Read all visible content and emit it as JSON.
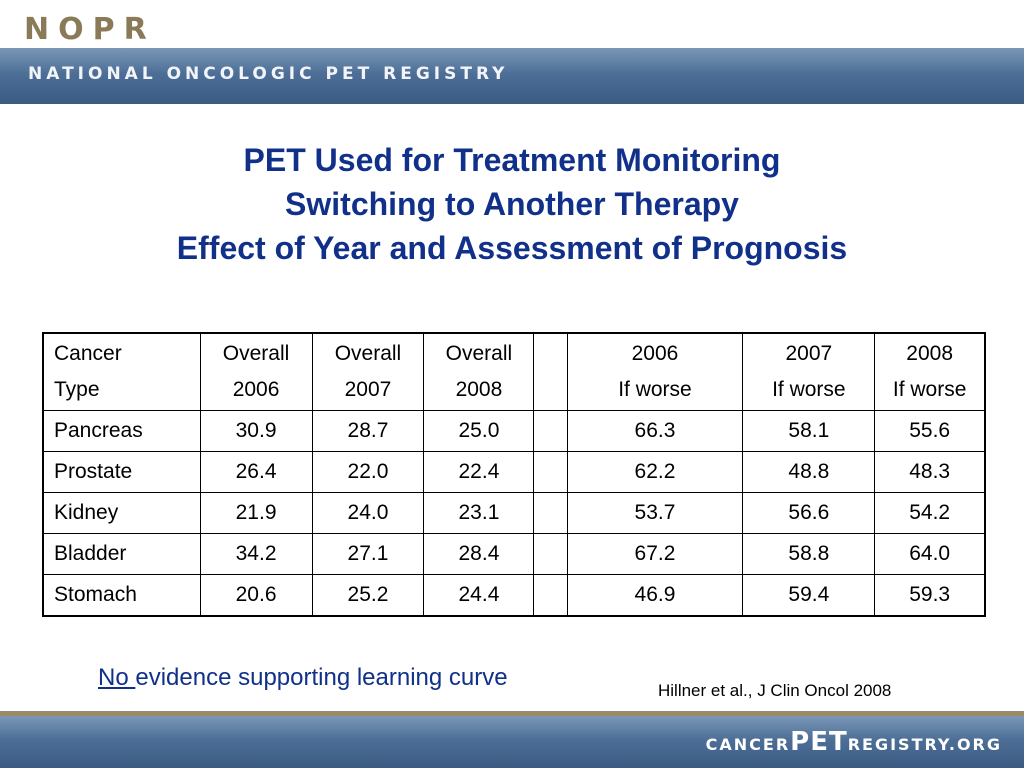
{
  "header": {
    "logo": "NOPR",
    "band_text": "NATIONAL ONCOLOGIC PET REGISTRY"
  },
  "title": {
    "line1": "PET Used for Treatment Monitoring",
    "line2": "Switching to Another Therapy",
    "line3": "Effect of Year and Assessment of Prognosis"
  },
  "table": {
    "headers": [
      [
        "Cancer",
        "Type"
      ],
      [
        "Overall",
        "2006"
      ],
      [
        "Overall",
        "2007"
      ],
      [
        "Overall",
        "2008"
      ],
      [
        "",
        ""
      ],
      [
        "2006",
        "If worse"
      ],
      [
        "2007",
        "If worse"
      ],
      [
        "2008",
        "If worse"
      ]
    ],
    "rows": [
      [
        "Pancreas",
        "30.9",
        "28.7",
        "25.0",
        "",
        "66.3",
        "58.1",
        "55.6"
      ],
      [
        "Prostate",
        "26.4",
        "22.0",
        "22.4",
        "",
        "62.2",
        "48.8",
        "48.3"
      ],
      [
        "Kidney",
        "21.9",
        "24.0",
        "23.1",
        "",
        "53.7",
        "56.6",
        "54.2"
      ],
      [
        "Bladder",
        "34.2",
        "27.1",
        "28.4",
        "",
        "67.2",
        "58.8",
        "64.0"
      ],
      [
        "Stomach",
        "20.6",
        "25.2",
        "24.4",
        "",
        "46.9",
        "59.4",
        "59.3"
      ]
    ]
  },
  "note": {
    "underlined": "No ",
    "rest": "evidence supporting learning curve"
  },
  "citation": "Hillner et al., J Clin Oncol 2008",
  "footer": {
    "part1": "CANCER",
    "part2": "PET",
    "part3": "REGISTRY.ORG"
  },
  "colors": {
    "title": "#10308a",
    "band": "#4d6f97",
    "logo": "#8a7a58"
  }
}
